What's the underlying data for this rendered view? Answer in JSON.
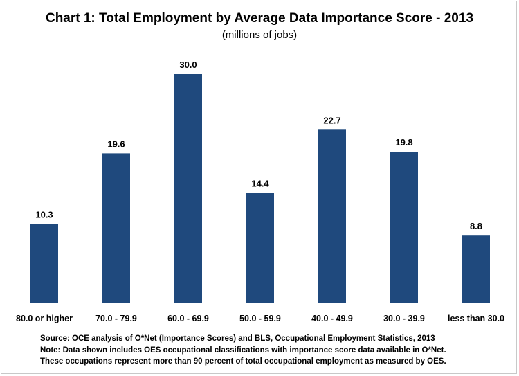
{
  "chart_data": {
    "type": "bar",
    "title": "Chart 1: Total Employment by Average Data Importance Score - 2013",
    "subtitle": "(millions of jobs)",
    "categories": [
      "80.0 or higher",
      "70.0 - 79.9",
      "60.0 - 69.9",
      "50.0 - 59.9",
      "40.0 - 49.9",
      "30.0 - 39.9",
      "less than 30.0"
    ],
    "values": [
      10.3,
      19.6,
      30.0,
      14.4,
      22.7,
      19.8,
      8.8
    ],
    "value_labels": [
      "10.3",
      "19.6",
      "30.0",
      "14.4",
      "22.7",
      "19.8",
      "8.8"
    ],
    "xlabel": "",
    "ylabel": "",
    "ylim": [
      0,
      30
    ],
    "grid": false,
    "bar_color": "#1f497d"
  },
  "notes": {
    "source": "Source: OCE analysis of O*Net (Importance Scores) and BLS, Occupational Employment Statistics, 2013",
    "note1": "Note: Data shown includes OES occupational classifications with importance score data available in O*Net.",
    "note2": "These occupations represent more than 90 percent of total occupational employment as measured by OES."
  }
}
